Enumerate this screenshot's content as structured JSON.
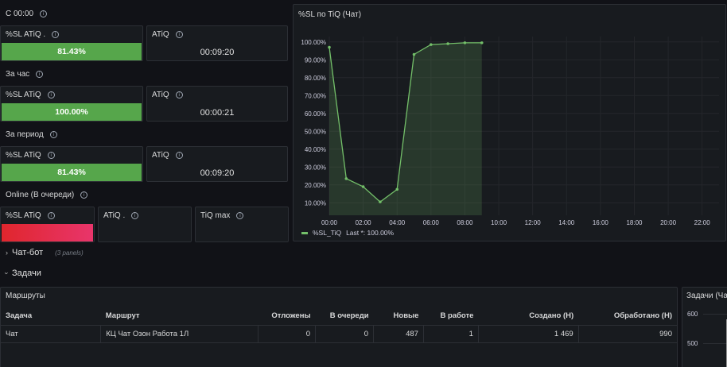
{
  "rows": {
    "since_midnight": "С 00:00",
    "per_hour": "За час",
    "per_period": "За период",
    "online": "Online (В очереди)"
  },
  "stats": {
    "r1": {
      "sl_title": "%SL ATiQ .",
      "sl_value": "81.43%",
      "sl_fill": 1.0,
      "atiq_title": "ATiQ",
      "atiq_value": "00:09:20"
    },
    "r2": {
      "sl_title": "%SL ATiQ",
      "sl_value": "100.00%",
      "sl_fill": 1.0,
      "atiq_title": "ATiQ",
      "atiq_value": "00:00:21"
    },
    "r3": {
      "sl_title": "%SL ATiQ",
      "sl_value": "81.43%",
      "sl_fill": 1.0,
      "atiq_title": "ATiQ",
      "atiq_value": "00:09:20"
    },
    "online": {
      "sl_title": "%SL ATiQ",
      "atiq_title": "ATiQ .",
      "tiq_title": "TiQ max"
    }
  },
  "chart_panel": {
    "title": "%SL по TiQ (Чат)",
    "legend": "%SL_TiQ",
    "legend_last": "Last *: 100.00%"
  },
  "chart_data": {
    "type": "area",
    "title": "%SL по TiQ (Чат)",
    "x_ticks": [
      "00:00",
      "02:00",
      "04:00",
      "06:00",
      "08:00",
      "10:00",
      "12:00",
      "14:00",
      "16:00",
      "18:00",
      "20:00",
      "22:00"
    ],
    "y_ticks": [
      "10.00%",
      "20.00%",
      "30.00%",
      "40.00%",
      "50.00%",
      "60.00%",
      "70.00%",
      "80.00%",
      "90.00%",
      "100.00%"
    ],
    "ylim": [
      3,
      103
    ],
    "xlim_hours": [
      0,
      23
    ],
    "series": [
      {
        "name": "%SL_TiQ",
        "color": "#73bf69",
        "x_hours": [
          0,
          1,
          2,
          3,
          4,
          5,
          6,
          7,
          8,
          9
        ],
        "values": [
          97,
          23.5,
          19,
          10.5,
          17.5,
          93,
          98.5,
          99,
          99.5,
          99.5
        ]
      }
    ],
    "grid": true,
    "legend_position": "bottom-left"
  },
  "sections": {
    "chatbot": {
      "label": "Чат-бот",
      "sub": "(3 panels)",
      "chev": "›"
    },
    "tasks": {
      "label": "Задачи",
      "chev": "›"
    }
  },
  "routes_panel": {
    "title": "Маршруты",
    "columns": [
      "Задача",
      "Маршрут",
      "Отложены",
      "В очереди",
      "Новые",
      "В работе",
      "Создано (Н)",
      "Обработано (Н)"
    ],
    "rows": [
      [
        "Чат",
        "КЦ Чат Озон Работа 1Л",
        "0",
        "0",
        "487",
        "1",
        "1 469",
        "990"
      ]
    ]
  },
  "tasks_chart_panel": {
    "title": "Задачи (Ча",
    "y_ticks": [
      "600",
      "500"
    ]
  },
  "colors": {
    "green": "#56a64b",
    "red": "#e0262d",
    "panel_bg": "#181b1f",
    "page_bg": "#111217"
  }
}
